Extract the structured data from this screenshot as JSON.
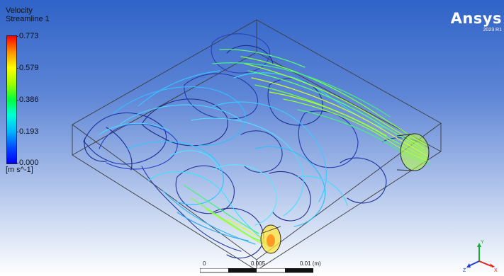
{
  "legend": {
    "title_line1": "Velocity",
    "title_line2": "Streamline 1",
    "ticks": [
      "0.773",
      "0.579",
      "0.386",
      "0.193",
      "0.000"
    ],
    "unit": "[m s^-1]"
  },
  "logo": {
    "name": "Ansys",
    "version": "2023 R1"
  },
  "scale": {
    "labels": [
      "0",
      "0.005",
      "0.01  (m)"
    ]
  },
  "triad": {
    "x": "X",
    "y": "Y",
    "z": "Z"
  },
  "colors": {
    "background_top": "#2f63c8",
    "background_bottom": "#ffffff",
    "axis_x": "#e0221a",
    "axis_y": "#12b030",
    "axis_z": "#1e3cd8"
  }
}
